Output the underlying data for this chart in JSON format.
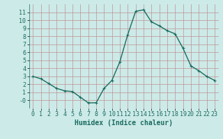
{
  "x": [
    0,
    1,
    2,
    3,
    4,
    5,
    6,
    7,
    8,
    9,
    10,
    11,
    12,
    13,
    14,
    15,
    16,
    17,
    18,
    19,
    20,
    21,
    22,
    23
  ],
  "y": [
    3.0,
    2.7,
    2.1,
    1.5,
    1.2,
    1.1,
    0.4,
    -0.3,
    -0.3,
    1.5,
    2.5,
    4.8,
    8.2,
    11.1,
    11.3,
    9.8,
    9.3,
    8.7,
    8.3,
    6.5,
    4.3,
    3.7,
    3.0,
    2.5
  ],
  "line_color": "#1a6b5e",
  "marker": "+",
  "marker_size": 3.5,
  "bg_color": "#cceae8",
  "grid_color_major": "#c09090",
  "grid_color_minor": "#d4b8b8",
  "xlabel": "Humidex (Indice chaleur)",
  "xlabel_fontsize": 7,
  "tick_fontsize": 6,
  "ylim": [
    -1,
    12
  ],
  "xlim": [
    -0.5,
    23.5
  ],
  "yticks": [
    0,
    1,
    2,
    3,
    4,
    5,
    6,
    7,
    8,
    9,
    10,
    11
  ],
  "xticks": [
    0,
    1,
    2,
    3,
    4,
    5,
    6,
    7,
    8,
    9,
    10,
    11,
    12,
    13,
    14,
    15,
    16,
    17,
    18,
    19,
    20,
    21,
    22,
    23
  ],
  "linewidth": 1.0
}
